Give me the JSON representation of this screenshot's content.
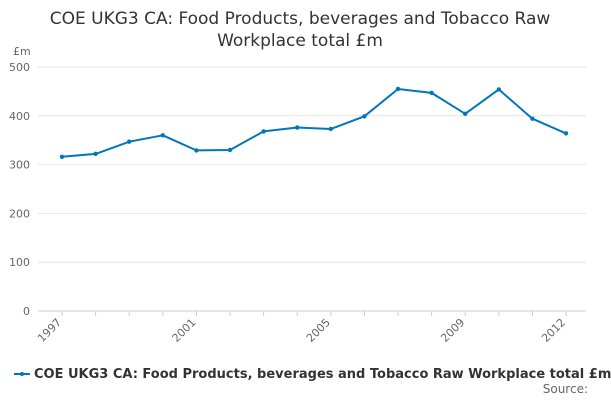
{
  "chart_data": {
    "type": "line",
    "title_line1": "COE UKG3 CA: Food Products, beverages and Tobacco Raw",
    "title_line2": "Workplace total £m",
    "ylabel": "£m",
    "xlabel": "",
    "ylim": [
      0,
      500
    ],
    "yticks": [
      0,
      100,
      200,
      300,
      400,
      500
    ],
    "xlim": [
      1997,
      2012
    ],
    "xtick_labels": [
      "1997",
      "2001",
      "2005",
      "2009",
      "2012"
    ],
    "grid": true,
    "legend_position": "bottom",
    "x": [
      1997,
      1998,
      1999,
      2000,
      2001,
      2002,
      2003,
      2004,
      2005,
      2006,
      2007,
      2008,
      2009,
      2010,
      2011,
      2012
    ],
    "series": [
      {
        "name": "COE UKG3 CA: Food Products, beverages and Tobacco Raw Workplace total £m",
        "color": "#0077bb",
        "values": [
          316,
          322,
          347,
          360,
          329,
          330,
          368,
          376,
          373,
          399,
          455,
          447,
          404,
          454,
          394,
          364
        ]
      }
    ],
    "source_label": "Source:"
  }
}
